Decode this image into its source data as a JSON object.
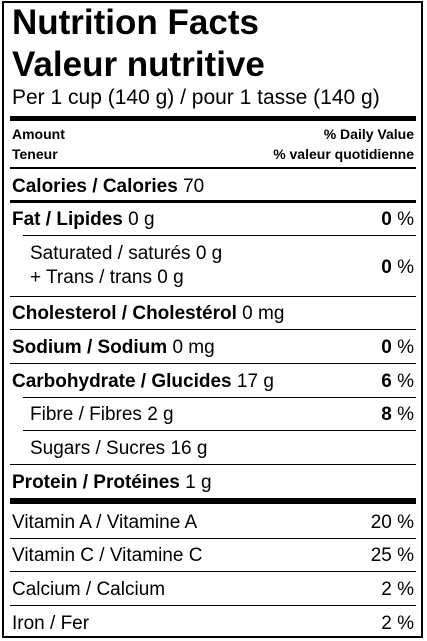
{
  "title_en": "Nutrition Facts",
  "title_fr": "Valeur nutritive",
  "serving": "Per 1 cup (140 g) / pour 1 tasse (140 g)",
  "header": {
    "amount": "Amount",
    "teneur": "Teneur",
    "dv": "% Daily Value",
    "dv_fr": "% valeur quotidienne"
  },
  "calories": {
    "label": "Calories / Calories",
    "value": "70"
  },
  "fat": {
    "label": "Fat / Lipides",
    "amount": "0 g",
    "dv_num": "0",
    "dv_unit": "%"
  },
  "saturated": {
    "line1": "Saturated / saturés 0 g",
    "line2": "+ Trans / trans 0 g",
    "dv_num": "0",
    "dv_unit": "%"
  },
  "cholesterol": {
    "label": "Cholesterol / Cholestérol",
    "amount": "0 mg"
  },
  "sodium": {
    "label": "Sodium / Sodium",
    "amount": "0 mg",
    "dv_num": "0",
    "dv_unit": "%"
  },
  "carbohydrate": {
    "label": "Carbohydrate / Glucides",
    "amount": "17 g",
    "dv_num": "6",
    "dv_unit": "%"
  },
  "fibre": {
    "label": "Fibre / Fibres",
    "amount": "2 g",
    "dv_num": "8",
    "dv_unit": "%"
  },
  "sugars": {
    "label": "Sugars / Sucres",
    "amount": "16 g"
  },
  "protein": {
    "label": "Protein / Protéines",
    "amount": "1 g"
  },
  "vitamins": [
    {
      "label": "Vitamin A / Vitamine A",
      "dv": "20 %"
    },
    {
      "label": "Vitamin C / Vitamine C",
      "dv": "25 %"
    },
    {
      "label": "Calcium / Calcium",
      "dv": "2 %"
    },
    {
      "label": "Iron / Fer",
      "dv": "2 %"
    }
  ]
}
